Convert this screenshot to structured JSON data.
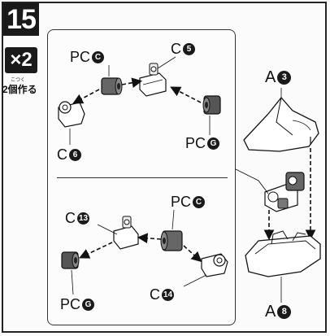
{
  "step": {
    "number": "15",
    "quantity": "×2",
    "ruby": "こつく",
    "make_text": "2個作る"
  },
  "top_panel": {
    "pc_top": {
      "prefix": "PC",
      "badge": "C"
    },
    "c_top": {
      "prefix": "C",
      "badge": "5"
    },
    "c_left": {
      "prefix": "C",
      "badge": "6"
    },
    "pc_right": {
      "prefix": "PC",
      "badge": "G"
    }
  },
  "bottom_panel": {
    "c_top": {
      "prefix": "C",
      "badge": "13"
    },
    "pc_top": {
      "prefix": "PC",
      "badge": "C"
    },
    "pc_bottom": {
      "prefix": "PC",
      "badge": "G"
    },
    "c_bottom": {
      "prefix": "C",
      "badge": "14"
    }
  },
  "right_parts": {
    "a_top": {
      "prefix": "A",
      "badge": "3"
    },
    "a_bottom": {
      "prefix": "A",
      "badge": "8"
    }
  }
}
